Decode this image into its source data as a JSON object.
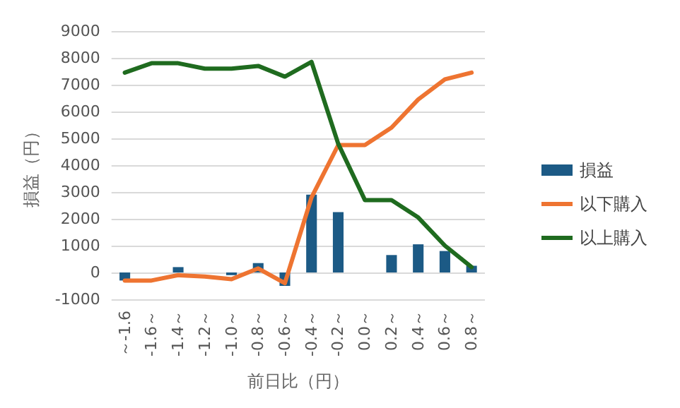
{
  "chart_data": {
    "type": "bar",
    "xlabel": "前日比（円）",
    "ylabel": "損益（円）",
    "categories": [
      "～-1.6",
      "-1.6～",
      "-1.4～",
      "-1.2～",
      "-1.0～",
      "-0.8～",
      "-0.6～",
      "-0.4～",
      "-0.2～",
      "0.0～",
      "0.2～",
      "0.4～",
      "0.6～",
      "0.8～"
    ],
    "series": [
      {
        "name": "損益",
        "color": "#1c5a85",
        "values": [
          -300,
          0,
          200,
          0,
          -100,
          350,
          -500,
          2900,
          2250,
          0,
          650,
          1050,
          800,
          250
        ]
      },
      {
        "name": "以下購入",
        "type": "line",
        "color": "#ee7431",
        "values": [
          -300,
          -300,
          -100,
          -150,
          -250,
          150,
          -400,
          2800,
          4750,
          4750,
          5400,
          6450,
          7200,
          7450
        ]
      },
      {
        "name": "以上購入",
        "type": "line",
        "color": "#1f6b1f",
        "values": [
          7450,
          7800,
          7800,
          7600,
          7600,
          7700,
          7300,
          7850,
          4800,
          2700,
          2700,
          2050,
          1000,
          200
        ]
      }
    ],
    "ylim": [
      -1000,
      9000
    ],
    "yticks": [
      -1000,
      0,
      1000,
      2000,
      3000,
      4000,
      5000,
      6000,
      7000,
      8000,
      9000
    ],
    "grid": "y",
    "legend": "right",
    "marker": "none"
  }
}
